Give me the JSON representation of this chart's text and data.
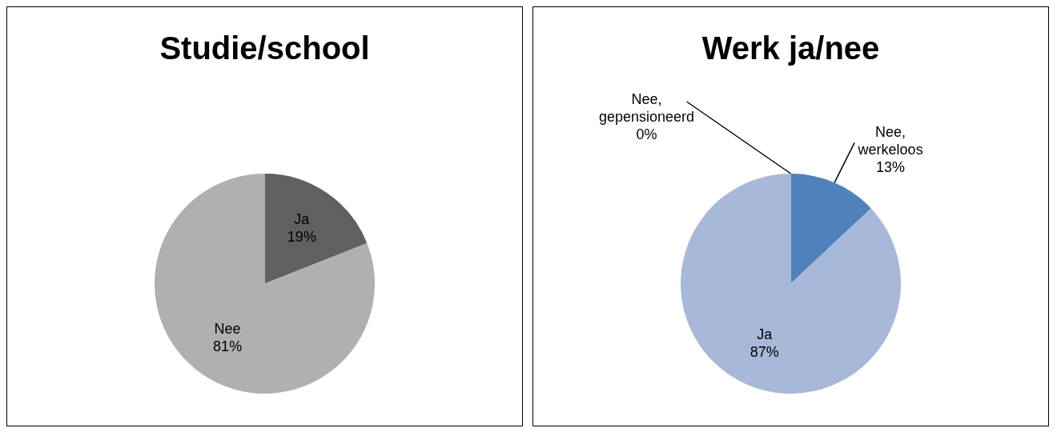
{
  "chart_data": [
    {
      "type": "pie",
      "title": "Studie/school",
      "categories": [
        "Ja",
        "Nee"
      ],
      "values": [
        19,
        81
      ],
      "value_labels": [
        "19%",
        "81%"
      ],
      "colors": [
        "#606060",
        "#b0b0b0"
      ],
      "legend": false
    },
    {
      "type": "pie",
      "title": "Werk ja/nee",
      "categories": [
        "Nee, werkeloos",
        "Ja",
        "Nee, gepensioneerd"
      ],
      "values": [
        13,
        87,
        0
      ],
      "value_labels": [
        "13%",
        "87%",
        "0%"
      ],
      "colors": [
        "#4f81bd",
        "#a8b8d8",
        "#c0504d"
      ],
      "legend": false
    }
  ]
}
